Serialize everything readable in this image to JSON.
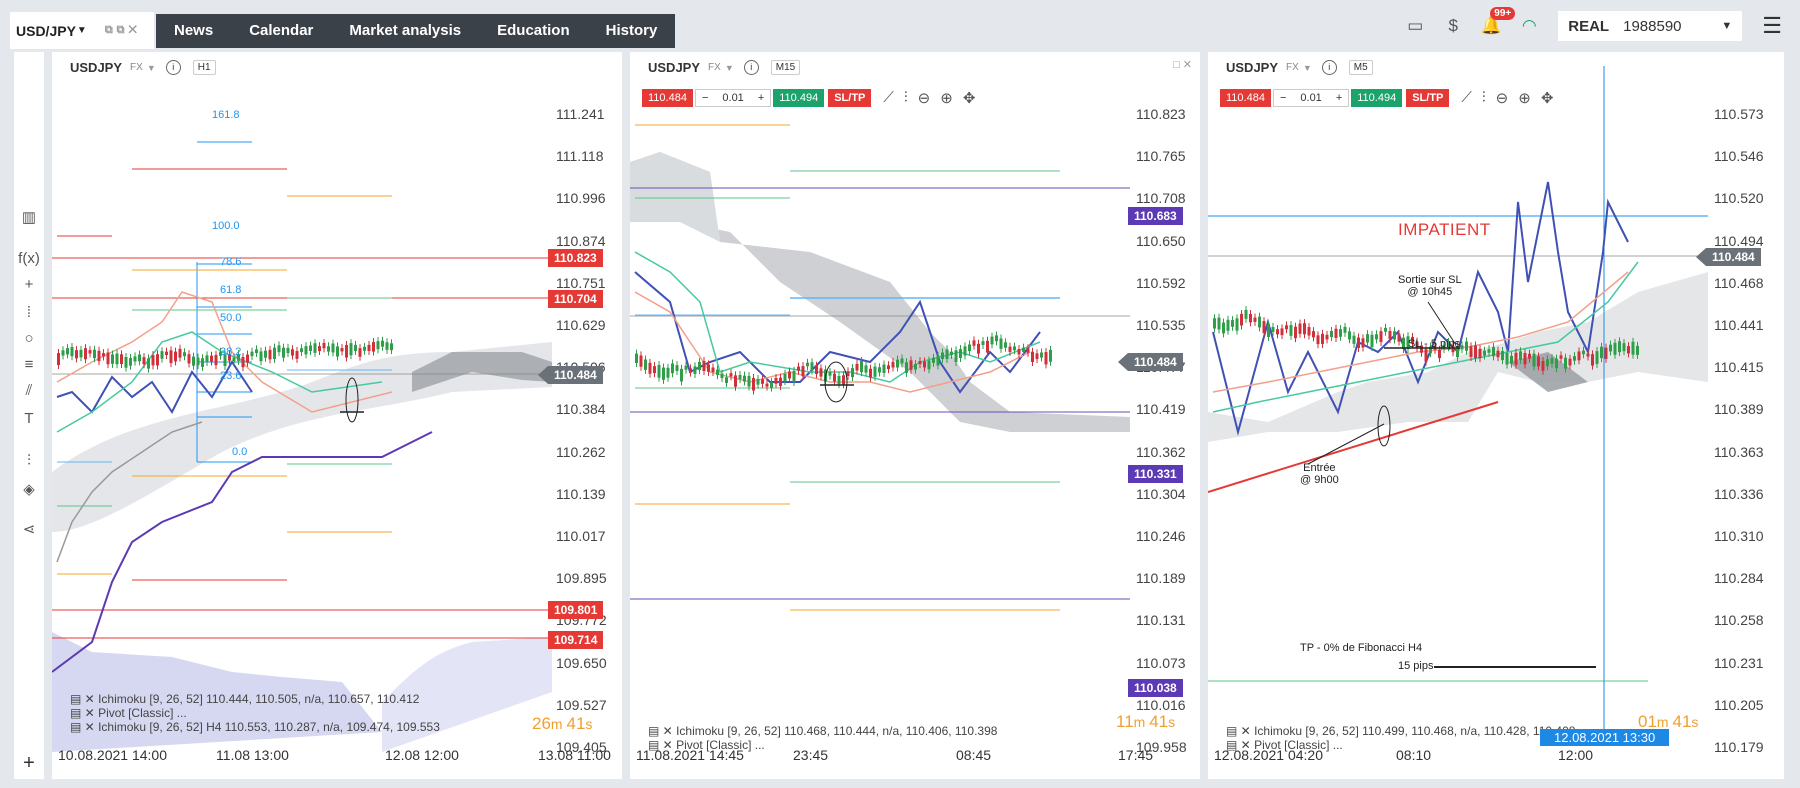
{
  "header": {
    "symbol_tab": "USD/JPY",
    "nav": [
      "News",
      "Calendar",
      "Market analysis",
      "Education",
      "History"
    ],
    "notifications_badge": "99+",
    "account_type": "REAL",
    "account_id": "1988590"
  },
  "charts": [
    {
      "symbol": "USDJPY",
      "market": "FX",
      "timeframe": "H1",
      "prices": [
        "111.241",
        "111.118",
        "110.996",
        "110.874",
        "110.751",
        "110.629",
        "110.506",
        "110.384",
        "110.262",
        "110.139",
        "110.017",
        "109.895",
        "109.772",
        "109.650",
        "109.527",
        "109.405"
      ],
      "tags": [
        {
          "value": "110.823",
          "color": "red"
        },
        {
          "value": "110.704",
          "color": "red"
        },
        {
          "value": "110.484",
          "color": "grey"
        },
        {
          "value": "109.801",
          "color": "red"
        },
        {
          "value": "109.714",
          "color": "red"
        }
      ],
      "time_labels": [
        "10.08.2021 14:00",
        "11.08 13:00",
        "12.08 12:00",
        "13.08 11:00"
      ],
      "indicators": [
        "Ichimoku [9, 26, 52] 110.444, 110.505, n/a, 110.657, 110.412",
        "Pivot [Classic] ...",
        "Ichimoku [9, 26, 52] H4 110.553, 110.287, n/a, 109.474, 109.553"
      ],
      "countdown_min": "26",
      "countdown_sec": "41",
      "fib_levels": [
        "161.8",
        "100.0",
        "78.6",
        "61.8",
        "50.0",
        "38.2",
        "23.6",
        "0.0"
      ]
    },
    {
      "symbol": "USDJPY",
      "market": "FX",
      "timeframe": "M15",
      "sell": "110.484",
      "lot": "0.01",
      "buy": "110.494",
      "sltp": "SL/TP",
      "prices": [
        "110.823",
        "110.765",
        "110.708",
        "110.650",
        "110.592",
        "110.535",
        "110.477",
        "110.419",
        "110.362",
        "110.304",
        "110.246",
        "110.189",
        "110.131",
        "110.073",
        "110.016",
        "109.958"
      ],
      "tags": [
        {
          "value": "110.683",
          "color": "purple"
        },
        {
          "value": "110.484",
          "color": "grey"
        },
        {
          "value": "110.331",
          "color": "purple"
        },
        {
          "value": "110.038",
          "color": "purple"
        }
      ],
      "time_labels": [
        "11.08.2021 14:45",
        "23:45",
        "08:45",
        "17:45"
      ],
      "indicators": [
        "Ichimoku [9, 26, 52] 110.468, 110.444, n/a, 110.406, 110.398",
        "Pivot [Classic] ..."
      ],
      "countdown_min": "11",
      "countdown_sec": "41"
    },
    {
      "symbol": "USDJPY",
      "market": "FX",
      "timeframe": "M5",
      "sell": "110.484",
      "lot": "0.01",
      "buy": "110.494",
      "sltp": "SL/TP",
      "prices": [
        "110.573",
        "110.546",
        "110.520",
        "110.494",
        "110.468",
        "110.441",
        "110.415",
        "110.389",
        "110.363",
        "110.336",
        "110.310",
        "110.284",
        "110.258",
        "110.231",
        "110.205",
        "110.179"
      ],
      "tags": [
        {
          "value": "110.484",
          "color": "grey"
        }
      ],
      "time_labels": [
        "12.08.2021 04:20",
        "08:10",
        "12:00"
      ],
      "crosshair_date": "12.08.2021 13:30",
      "indicators": [
        "Ichimoku [9, 26, 52] 110.499, 110.468, n/a, 110.428, 110.408",
        "Pivot [Classic] ..."
      ],
      "countdown_min": "01",
      "countdown_sec": "41",
      "annotations": {
        "impatient": "IMPATIENT",
        "exit_line1": "Sortie sur SL",
        "exit_line2": "@ 10h45",
        "sl": "SL - 5 pips",
        "entry_line1": "Entrée",
        "entry_line2": "@ 9h00",
        "tp_line1": "TP - 0% de Fibonacci H4",
        "tp_line2": "15 pips"
      }
    }
  ]
}
